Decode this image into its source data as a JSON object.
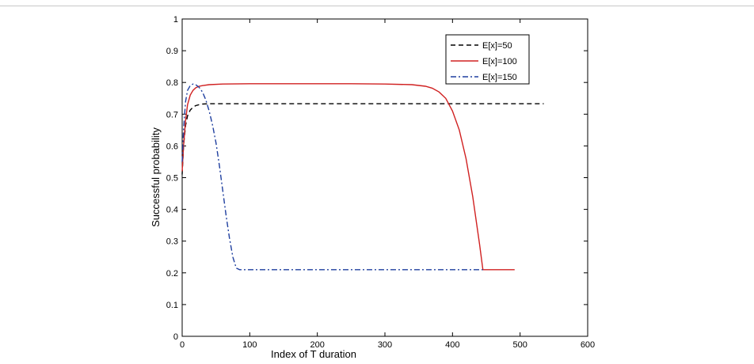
{
  "chart_data": {
    "type": "line",
    "title": "",
    "xlabel": "Index of T duration",
    "ylabel": "Successful probability",
    "xlim": [
      0,
      600
    ],
    "ylim": [
      0,
      1
    ],
    "xticks": [
      "0",
      "100",
      "200",
      "300",
      "400",
      "500",
      "600"
    ],
    "yticks": [
      "0",
      "0.1",
      "0.2",
      "0.3",
      "0.4",
      "0.5",
      "0.6",
      "0.7",
      "0.8",
      "0.9",
      "1"
    ],
    "grid": false,
    "legend_position": "top-right",
    "series": [
      {
        "name": "E[x]=50",
        "color": "#000000",
        "style": "dashed",
        "x": [
          0,
          2,
          5,
          8,
          12,
          16,
          20,
          25,
          30,
          40,
          60,
          100,
          200,
          300,
          400,
          500,
          535
        ],
        "y": [
          0.51,
          0.6,
          0.665,
          0.695,
          0.713,
          0.722,
          0.727,
          0.73,
          0.732,
          0.733,
          0.733,
          0.733,
          0.733,
          0.733,
          0.733,
          0.733,
          0.733
        ]
      },
      {
        "name": "E[x]=100",
        "color": "#d02020",
        "style": "solid",
        "x": [
          0,
          2,
          5,
          8,
          12,
          16,
          20,
          25,
          30,
          40,
          60,
          100,
          150,
          200,
          250,
          300,
          340,
          360,
          370,
          380,
          390,
          400,
          410,
          420,
          430,
          440,
          445,
          460,
          480,
          492
        ],
        "y": [
          0.52,
          0.6,
          0.68,
          0.73,
          0.76,
          0.775,
          0.783,
          0.788,
          0.79,
          0.793,
          0.795,
          0.796,
          0.796,
          0.796,
          0.796,
          0.795,
          0.793,
          0.788,
          0.782,
          0.77,
          0.75,
          0.71,
          0.65,
          0.56,
          0.44,
          0.29,
          0.21,
          0.21,
          0.21,
          0.21
        ]
      },
      {
        "name": "E[x]=150",
        "color": "#1f3f9f",
        "style": "dashdot",
        "x": [
          0,
          2,
          5,
          8,
          12,
          16,
          20,
          25,
          30,
          35,
          40,
          45,
          50,
          55,
          60,
          65,
          70,
          75,
          80,
          85,
          100,
          200,
          300,
          400,
          445
        ],
        "y": [
          0.55,
          0.65,
          0.74,
          0.775,
          0.79,
          0.795,
          0.793,
          0.785,
          0.77,
          0.745,
          0.71,
          0.665,
          0.61,
          0.54,
          0.46,
          0.38,
          0.31,
          0.25,
          0.215,
          0.21,
          0.21,
          0.21,
          0.21,
          0.21,
          0.21
        ]
      }
    ]
  }
}
